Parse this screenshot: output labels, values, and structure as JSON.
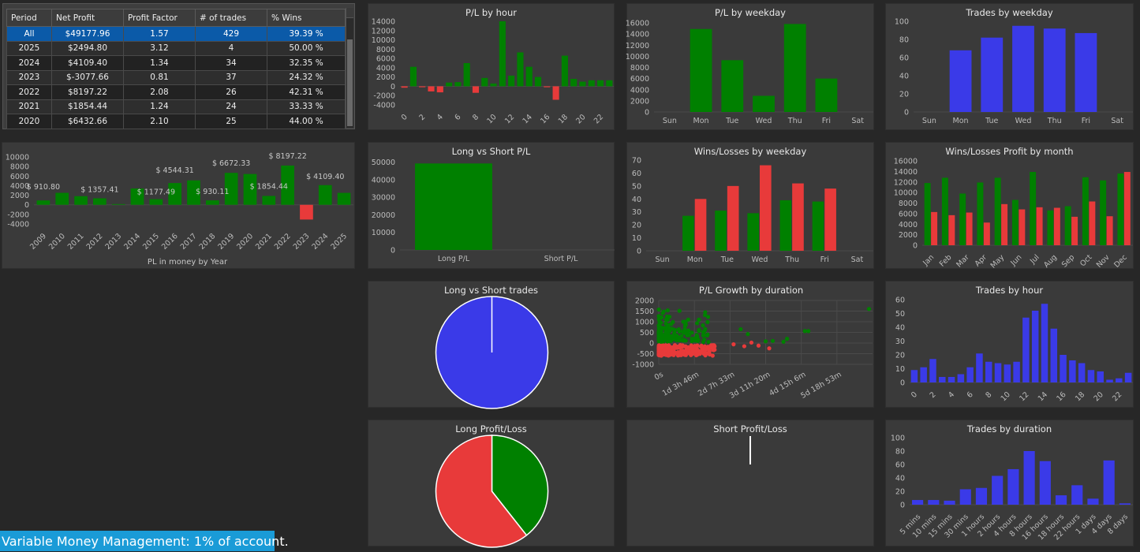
{
  "table": {
    "headers": [
      "Period",
      "Net Profit",
      "Profit Factor",
      "# of trades",
      "% Wins"
    ],
    "rows": [
      [
        "All",
        "$49177.96",
        "1.57",
        "429",
        "39.39 %"
      ],
      [
        "2025",
        "$2494.80",
        "3.12",
        "4",
        "50.00 %"
      ],
      [
        "2024",
        "$4109.40",
        "1.34",
        "34",
        "32.35 %"
      ],
      [
        "2023",
        "$-3077.66",
        "0.81",
        "37",
        "24.32 %"
      ],
      [
        "2022",
        "$8197.22",
        "2.08",
        "26",
        "42.31 %"
      ],
      [
        "2021",
        "$1854.44",
        "1.24",
        "24",
        "33.33 %"
      ],
      [
        "2020",
        "$6432.66",
        "2.10",
        "25",
        "44.00 %"
      ]
    ]
  },
  "footer": {
    "text": "Variable Money Management: 1% of account."
  },
  "colors": {
    "green": "#008000",
    "red": "#e83a3a",
    "blue": "#3a3ae8",
    "panel": "#3a3a3a",
    "background": "#272727",
    "footer": "#1a9bd7"
  },
  "chart_data": [
    {
      "id": "pl-by-year",
      "type": "bar",
      "title": "",
      "xlabel": "PL in money by Year",
      "categories": [
        "2009",
        "2010",
        "2011",
        "2012",
        "2013",
        "2014",
        "2015",
        "2016",
        "2017",
        "2018",
        "2019",
        "2020",
        "2021",
        "2022",
        "2023",
        "2024",
        "2025"
      ],
      "values": [
        910.8,
        2500,
        1800,
        1357.41,
        150,
        3400,
        1177.49,
        4544.31,
        5100,
        930.11,
        6672.33,
        6432.66,
        1854.44,
        8197.22,
        -3077.66,
        4109.4,
        2494.8
      ],
      "yticks": [
        10000,
        8000,
        6000,
        4000,
        2000,
        0,
        -2000,
        -4000
      ],
      "ylim": [
        -4000,
        10000
      ],
      "data_labels": [
        {
          "index": 0,
          "text": "$ 910.80"
        },
        {
          "index": 3,
          "text": "$ 1357.41"
        },
        {
          "index": 6,
          "text": "$ 1177.49"
        },
        {
          "index": 7,
          "text": "$ 4544.31"
        },
        {
          "index": 9,
          "text": "$ 930.11"
        },
        {
          "index": 10,
          "text": "$ 6672.33"
        },
        {
          "index": 12,
          "text": "$ 1854.44"
        },
        {
          "index": 13,
          "text": "$ 8197.22"
        },
        {
          "index": 15,
          "text": "$ 4109.40"
        }
      ],
      "grid": false
    },
    {
      "id": "pl-by-hour",
      "type": "bar",
      "title": "P/L by hour",
      "categories": [
        "0",
        "1",
        "2",
        "3",
        "4",
        "5",
        "6",
        "7",
        "8",
        "9",
        "10",
        "11",
        "12",
        "13",
        "14",
        "15",
        "16",
        "17",
        "18",
        "19",
        "20",
        "21",
        "22",
        "23"
      ],
      "xtick_labels": [
        "0",
        "",
        "2",
        "",
        "4",
        "",
        "6",
        "",
        "8",
        "",
        "10",
        "",
        "12",
        "",
        "14",
        "",
        "16",
        "",
        "18",
        "",
        "20",
        "",
        "22",
        ""
      ],
      "values": [
        -300,
        4200,
        -200,
        -1100,
        -1300,
        800,
        900,
        5000,
        -1400,
        1800,
        600,
        14000,
        2300,
        7300,
        4200,
        2000,
        -200,
        -2900,
        6600,
        1600,
        1000,
        1300,
        1300,
        1300
      ],
      "yticks": [
        14000,
        12000,
        10000,
        8000,
        6000,
        4000,
        2000,
        0,
        -2000,
        -4000
      ],
      "ylim": [
        -4000,
        14000
      ],
      "grid": false
    },
    {
      "id": "pl-by-weekday",
      "type": "bar",
      "title": "P/L by weekday",
      "categories": [
        "Sun",
        "Mon",
        "Tue",
        "Wed",
        "Thu",
        "Fri",
        "Sat"
      ],
      "values": [
        0,
        14900,
        9300,
        2900,
        15800,
        6000,
        0
      ],
      "yticks": [
        16000,
        14000,
        12000,
        10000,
        8000,
        6000,
        4000,
        2000,
        0
      ],
      "ylim": [
        0,
        16000
      ],
      "grid": false
    },
    {
      "id": "trades-by-weekday",
      "type": "bar",
      "title": "Trades by weekday",
      "categories": [
        "Sun",
        "Mon",
        "Tue",
        "Wed",
        "Thu",
        "Fri",
        "Sat"
      ],
      "values": [
        0,
        68,
        82,
        95,
        92,
        87,
        0
      ],
      "yticks": [
        100,
        80,
        60,
        40,
        20,
        0
      ],
      "ylim": [
        0,
        100
      ],
      "grid": false
    },
    {
      "id": "long-short-pl",
      "type": "bar",
      "title": "Long vs Short P/L",
      "categories": [
        "Long P/L",
        "Short P/L"
      ],
      "values": [
        49177.96,
        0
      ],
      "yticks": [
        50000,
        40000,
        30000,
        20000,
        10000,
        0
      ],
      "ylim": [
        0,
        52000
      ],
      "grid": false
    },
    {
      "id": "wins-losses-weekday",
      "type": "bar",
      "title": "Wins/Losses by weekday",
      "categories": [
        "Sun",
        "Mon",
        "Tue",
        "Wed",
        "Thu",
        "Fri",
        "Sat"
      ],
      "series": [
        {
          "key": "wins",
          "values": [
            0,
            27,
            31,
            29,
            39,
            38,
            0
          ]
        },
        {
          "key": "losses",
          "values": [
            0,
            40,
            50,
            66,
            52,
            48,
            0
          ]
        }
      ],
      "yticks": [
        70,
        60,
        50,
        40,
        30,
        20,
        10,
        0
      ],
      "ylim": [
        0,
        70
      ],
      "grid": false
    },
    {
      "id": "wins-losses-profit-month",
      "type": "bar",
      "title": "Wins/Losses Profit by month",
      "categories": [
        "Jan",
        "Feb",
        "Mar",
        "Apr",
        "May",
        "Jun",
        "Jul",
        "Aug",
        "Sep",
        "Oct",
        "Nov",
        "Dec"
      ],
      "series": [
        {
          "key": "wins",
          "values": [
            11800,
            12800,
            9800,
            11900,
            12800,
            8600,
            13900,
            6600,
            7400,
            12900,
            12300,
            13600
          ]
        },
        {
          "key": "losses",
          "values": [
            6300,
            5700,
            6200,
            4300,
            7800,
            6800,
            7200,
            7100,
            5400,
            8300,
            5500,
            13900
          ]
        }
      ],
      "yticks": [
        16000,
        14000,
        12000,
        10000,
        8000,
        6000,
        4000,
        2000,
        0
      ],
      "ylim": [
        0,
        16000
      ],
      "grid": false
    },
    {
      "id": "long-short-trades",
      "type": "pie",
      "title": "Long vs Short trades",
      "slices": [
        {
          "key": "long",
          "value": 429,
          "color": "#3a3ae8"
        },
        {
          "key": "short",
          "value": 0,
          "color": "#3a3ae8"
        }
      ]
    },
    {
      "id": "pl-growth-duration",
      "type": "scatter",
      "title": "P/L Growth by duration",
      "xtick_labels": [
        "0s",
        "1d 3h 46m",
        "2d 7h 33m",
        "3d 11h 20m",
        "4d 15h 6m",
        "5d 18h 53m"
      ],
      "xlim": [
        0,
        6
      ],
      "ylim": [
        -1000,
        2000
      ],
      "yticks": [
        2000,
        1500,
        1000,
        500,
        0,
        -500,
        -1000
      ],
      "grid": true
    },
    {
      "id": "trades-by-hour",
      "type": "bar",
      "title": "Trades by hour",
      "categories": [
        "0",
        "1",
        "2",
        "3",
        "4",
        "5",
        "6",
        "7",
        "8",
        "9",
        "10",
        "11",
        "12",
        "13",
        "14",
        "15",
        "16",
        "17",
        "18",
        "19",
        "20",
        "21",
        "22",
        "23"
      ],
      "xtick_labels": [
        "0",
        "",
        "2",
        "",
        "4",
        "",
        "6",
        "",
        "8",
        "",
        "10",
        "",
        "12",
        "",
        "14",
        "",
        "16",
        "",
        "18",
        "",
        "20",
        "",
        "22",
        ""
      ],
      "values": [
        9,
        11,
        17,
        4,
        4,
        6,
        11,
        21,
        15,
        14,
        13,
        15,
        47,
        52,
        57,
        39,
        20,
        16,
        14,
        9,
        8,
        2,
        3,
        7
      ],
      "yticks": [
        60,
        50,
        40,
        30,
        20,
        10,
        0
      ],
      "ylim": [
        0,
        60
      ],
      "grid": false
    },
    {
      "id": "long-profit-loss",
      "type": "pie",
      "title": "Long Profit/Loss",
      "slices": [
        {
          "key": "profit",
          "value": 39.39,
          "color": "#008000"
        },
        {
          "key": "loss",
          "value": 60.61,
          "color": "#e83a3a"
        }
      ]
    },
    {
      "id": "short-profit-loss",
      "type": "pie",
      "title": "Short Profit/Loss",
      "slices": []
    },
    {
      "id": "trades-by-duration",
      "type": "bar",
      "title": "Trades by duration",
      "categories": [
        "5 mins",
        "10 mins",
        "15 mins",
        "30 mins",
        "1 hours",
        "2 hours",
        "4 hours",
        "8 hours",
        "16 hours",
        "18 hours",
        "22 hours",
        "1 days",
        "4 days",
        "8 days"
      ],
      "values": [
        7,
        7,
        6,
        23,
        25,
        43,
        53,
        80,
        65,
        14,
        29,
        9,
        66,
        2
      ],
      "yticks": [
        100,
        80,
        60,
        40,
        20,
        0
      ],
      "ylim": [
        0,
        100
      ],
      "grid": false
    }
  ]
}
